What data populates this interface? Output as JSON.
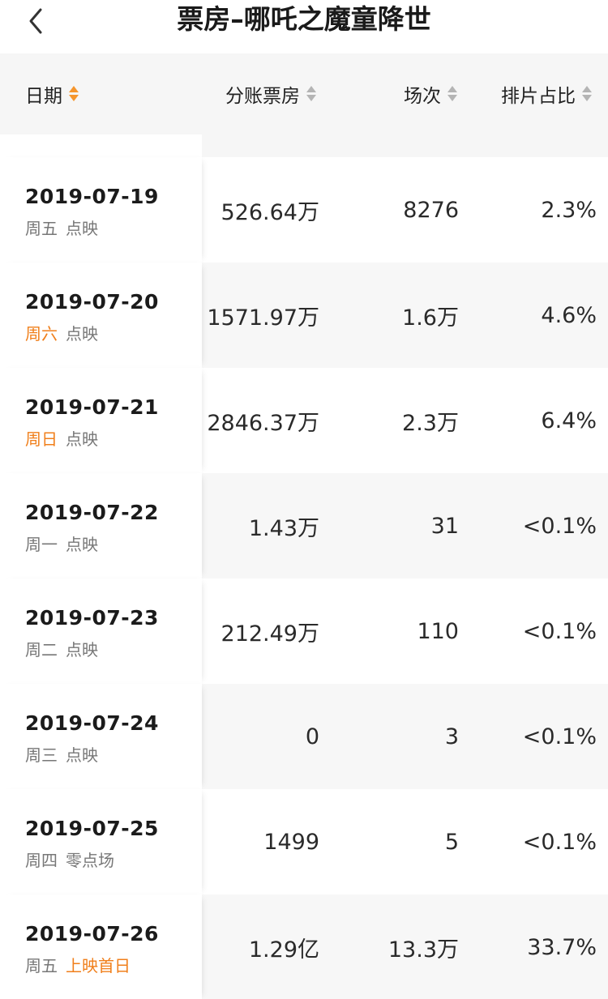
{
  "header": {
    "title": "票房–哪吒之魔童降世",
    "back_icon": "chevron-left-icon"
  },
  "columns": [
    {
      "label": "日期",
      "sort_icon": "sort-icon",
      "active": true
    },
    {
      "label": "分账票房",
      "sort_icon": "sort-icon",
      "active": false
    },
    {
      "label": "场次",
      "sort_icon": "sort-icon",
      "active": false
    },
    {
      "label": "排片占比",
      "sort_icon": "sort-icon",
      "active": false
    }
  ],
  "colors": {
    "accent": "#f07f1b",
    "sort_active": "#f5962d",
    "sort_inactive": "#b4b4b4",
    "row_alt": "#f7f7f7"
  },
  "rows": [
    {
      "date": "2019-07-19",
      "weekday": "周五",
      "weekday_highlight": false,
      "tag": "点映",
      "tag_highlight": false,
      "box_office": "526.64万",
      "shows": "8276",
      "share": "2.3%"
    },
    {
      "date": "2019-07-20",
      "weekday": "周六",
      "weekday_highlight": true,
      "tag": "点映",
      "tag_highlight": false,
      "box_office": "1571.97万",
      "shows": "1.6万",
      "share": "4.6%"
    },
    {
      "date": "2019-07-21",
      "weekday": "周日",
      "weekday_highlight": true,
      "tag": "点映",
      "tag_highlight": false,
      "box_office": "2846.37万",
      "shows": "2.3万",
      "share": "6.4%"
    },
    {
      "date": "2019-07-22",
      "weekday": "周一",
      "weekday_highlight": false,
      "tag": "点映",
      "tag_highlight": false,
      "box_office": "1.43万",
      "shows": "31",
      "share": "<0.1%"
    },
    {
      "date": "2019-07-23",
      "weekday": "周二",
      "weekday_highlight": false,
      "tag": "点映",
      "tag_highlight": false,
      "box_office": "212.49万",
      "shows": "110",
      "share": "<0.1%"
    },
    {
      "date": "2019-07-24",
      "weekday": "周三",
      "weekday_highlight": false,
      "tag": "点映",
      "tag_highlight": false,
      "box_office": "0",
      "shows": "3",
      "share": "<0.1%"
    },
    {
      "date": "2019-07-25",
      "weekday": "周四",
      "weekday_highlight": false,
      "tag": "零点场",
      "tag_highlight": false,
      "box_office": "1499",
      "shows": "5",
      "share": "<0.1%"
    },
    {
      "date": "2019-07-26",
      "weekday": "周五",
      "weekday_highlight": false,
      "tag": "上映首日",
      "tag_highlight": true,
      "box_office": "1.29亿",
      "shows": "13.3万",
      "share": "33.7%"
    }
  ]
}
